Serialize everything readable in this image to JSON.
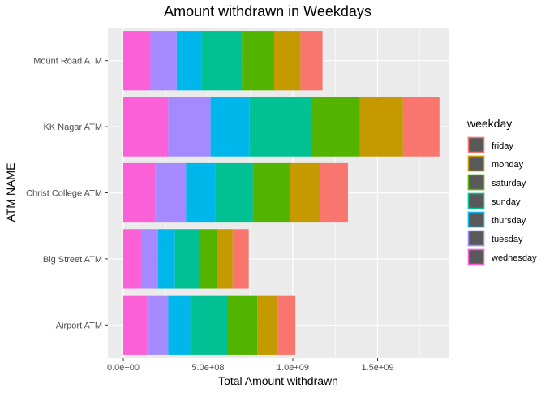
{
  "chart_data": {
    "type": "bar",
    "orientation": "horizontal",
    "stacked": true,
    "title": "Amount withdrawn in Weekdays",
    "xlabel": "Total Amount withdrawn",
    "ylabel": "ATM NAME",
    "xlim": [
      0,
      1950000000
    ],
    "x_ticks": [
      0,
      500000000,
      1000000000,
      1500000000
    ],
    "x_tick_labels": [
      "0.0e+00",
      "5.0e+08",
      "1.0e+09",
      "1.5e+09"
    ],
    "categories": [
      "Mount Road ATM",
      "KK Nagar ATM",
      "Christ College ATM",
      "Big Street ATM",
      "Airport ATM"
    ],
    "grid": true,
    "legend": {
      "title": "weekday",
      "position": "right",
      "entries": [
        "friday",
        "monday",
        "saturday",
        "sunday",
        "thursday",
        "tuesday",
        "wednesday"
      ]
    },
    "stack_order_from_zero": [
      "wednesday",
      "tuesday",
      "thursday",
      "sunday",
      "saturday",
      "monday",
      "friday"
    ],
    "series": [
      {
        "name": "friday",
        "color": "#F8766D",
        "values": [
          130000000,
          215000000,
          165000000,
          95000000,
          105000000
        ]
      },
      {
        "name": "monday",
        "color": "#C49A00",
        "values": [
          155000000,
          255000000,
          175000000,
          90000000,
          120000000
        ]
      },
      {
        "name": "saturday",
        "color": "#53B400",
        "values": [
          190000000,
          290000000,
          220000000,
          105000000,
          175000000
        ]
      },
      {
        "name": "sunday",
        "color": "#00C094",
        "values": [
          240000000,
          360000000,
          220000000,
          145000000,
          220000000
        ]
      },
      {
        "name": "thursday",
        "color": "#00B6EB",
        "values": [
          145000000,
          230000000,
          175000000,
          100000000,
          130000000
        ]
      },
      {
        "name": "tuesday",
        "color": "#A58AFF",
        "values": [
          155000000,
          250000000,
          180000000,
          100000000,
          125000000
        ]
      },
      {
        "name": "wednesday",
        "color": "#FB61D7",
        "values": [
          160000000,
          265000000,
          190000000,
          105000000,
          140000000
        ]
      }
    ],
    "panel_background": "#EBEBEB",
    "grid_color": "#FFFFFF"
  }
}
